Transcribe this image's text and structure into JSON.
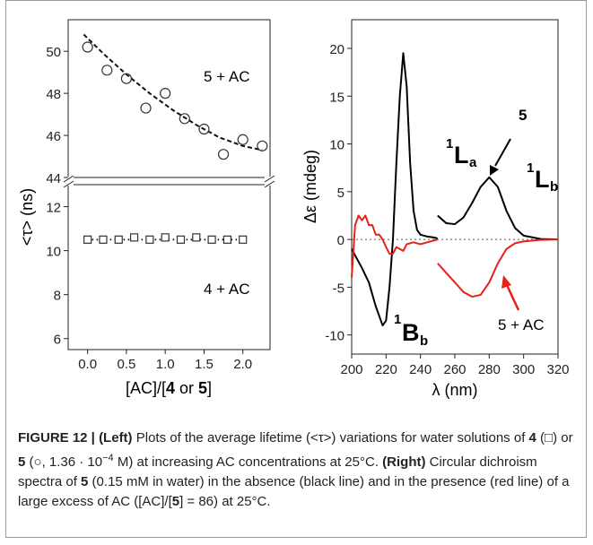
{
  "figure_label": "FIGURE 12 |",
  "caption": {
    "left_label": "(Left)",
    "p1": " Plots of the average lifetime (<τ>) variations for water solutions of ",
    "c4": "4",
    "p2": " (□) or ",
    "c5": "5",
    "p3": " (○, 1.36 · 10",
    "exp": "−4",
    "p4": " M) at increasing AC concentrations at 25°C. ",
    "right_label": "(Right)",
    "p5": " Circular dichroism spectra of ",
    "c5b": "5",
    "p6": " (0.15 mM in water) in the absence (black line) and in the presence (red line) of a large excess of AC ([AC]/[",
    "c5c": "5",
    "p7": "] = 86) at 25°C."
  },
  "left_chart": {
    "ylabel": "<τ> (ns)",
    "xlabel_pre": "[AC]/[",
    "xlabel_b1": "4",
    "xlabel_mid": " or ",
    "xlabel_b2": "5",
    "xlabel_post": "]",
    "ann5": "5 + AC",
    "ann4": "4 + AC",
    "yticks_upper": [
      "44",
      "46",
      "48",
      "50"
    ],
    "yticks_lower": [
      "6",
      "8",
      "10",
      "12"
    ],
    "xticks": [
      "0.0",
      "0.5",
      "1.0",
      "1.5",
      "2.0"
    ]
  },
  "right_chart": {
    "ylabel": "Δε (mdeg)",
    "xlabel": "λ (nm)",
    "yticks": [
      "-10",
      "-5",
      "0",
      "5",
      "10",
      "15",
      "20"
    ],
    "xticks": [
      "200",
      "220",
      "240",
      "260",
      "280",
      "300",
      "320"
    ],
    "ann5": "5",
    "ann5ac": "5 + AC",
    "la_sup": "1",
    "la_main": "L",
    "la_sub": "a",
    "lb_sup": "1",
    "lb_main": "L",
    "lb_sub": "b",
    "bb_sup": "1",
    "bb_main": "B",
    "bb_sub": "b"
  },
  "chart_data": [
    {
      "type": "scatter",
      "xlabel": "[AC]/[4 or 5]",
      "ylabel": "<τ> (ns)",
      "xlim": [
        -0.25,
        2.35
      ],
      "ylim_upper": [
        44,
        51.5
      ],
      "ylim_lower": [
        5.5,
        13
      ],
      "series": [
        {
          "name": "5 + AC",
          "x": [
            0.0,
            0.25,
            0.5,
            0.75,
            1.0,
            1.25,
            1.5,
            1.75,
            2.0,
            2.25
          ],
          "y": [
            50.2,
            49.1,
            48.7,
            47.3,
            48.0,
            46.8,
            46.3,
            45.1,
            45.8,
            45.5
          ]
        },
        {
          "name": "4 + AC",
          "x": [
            0.0,
            0.2,
            0.4,
            0.6,
            0.8,
            1.0,
            1.2,
            1.4,
            1.6,
            1.8,
            2.0
          ],
          "y": [
            10.5,
            10.5,
            10.5,
            10.6,
            10.5,
            10.6,
            10.5,
            10.6,
            10.5,
            10.5,
            10.5
          ]
        }
      ],
      "fit_upper": {
        "x": [
          -0.05,
          0.2,
          0.5,
          0.8,
          1.1,
          1.4,
          1.7,
          2.0,
          2.25
        ],
        "y": [
          50.8,
          49.9,
          48.9,
          48.0,
          47.2,
          46.5,
          45.9,
          45.5,
          45.3
        ]
      },
      "fit_lower": {
        "x": [
          0.0,
          2.0
        ],
        "y": [
          10.5,
          10.5
        ]
      }
    },
    {
      "type": "line",
      "xlabel": "λ (nm)",
      "ylabel": "Δε (mdeg)",
      "xlim": [
        200,
        320
      ],
      "ylim": [
        -12,
        23
      ],
      "series": [
        {
          "name": "5",
          "color": "#000000",
          "x": [
            200,
            203,
            206,
            210,
            214,
            218,
            220,
            222,
            224,
            226,
            228,
            230,
            232,
            234,
            236,
            238,
            240,
            244,
            248,
            250
          ],
          "y": [
            -1,
            -2,
            -3,
            -4.5,
            -7,
            -9,
            -8.5,
            -5,
            0,
            8,
            15,
            19.5,
            16,
            8,
            3,
            1,
            0.5,
            0.3,
            0.2,
            0.1
          ]
        },
        {
          "name": "5",
          "color": "#000000",
          "x": [
            250,
            255,
            260,
            265,
            270,
            275,
            280,
            285,
            290,
            295,
            300,
            310,
            320
          ],
          "y": [
            2.5,
            1.7,
            1.6,
            2.3,
            3.8,
            5.5,
            6.5,
            5.5,
            3.0,
            1.2,
            0.4,
            0.05,
            0
          ]
        },
        {
          "name": "5 + AC",
          "color": "#e8201a",
          "x": [
            200,
            202,
            204,
            206,
            208,
            210,
            212,
            214,
            216,
            218,
            220,
            222,
            224,
            226,
            228,
            230,
            232,
            236,
            240,
            244,
            248,
            250
          ],
          "y": [
            -4,
            1.5,
            2.5,
            2.0,
            2.5,
            1.5,
            1.5,
            0.5,
            0.5,
            0,
            -0.8,
            -1.5,
            -1.5,
            -0.8,
            -1.0,
            -1.2,
            -0.5,
            -0.3,
            -0.5,
            -0.3,
            -0.1,
            0
          ]
        },
        {
          "name": "5 + AC",
          "color": "#e8201a",
          "x": [
            250,
            255,
            260,
            265,
            270,
            275,
            280,
            285,
            290,
            295,
            300,
            310,
            320
          ],
          "y": [
            -2.5,
            -3.5,
            -4.5,
            -5.5,
            -6.0,
            -5.8,
            -4.5,
            -2.5,
            -1.0,
            -0.4,
            -0.2,
            -0.05,
            0
          ]
        }
      ]
    }
  ]
}
